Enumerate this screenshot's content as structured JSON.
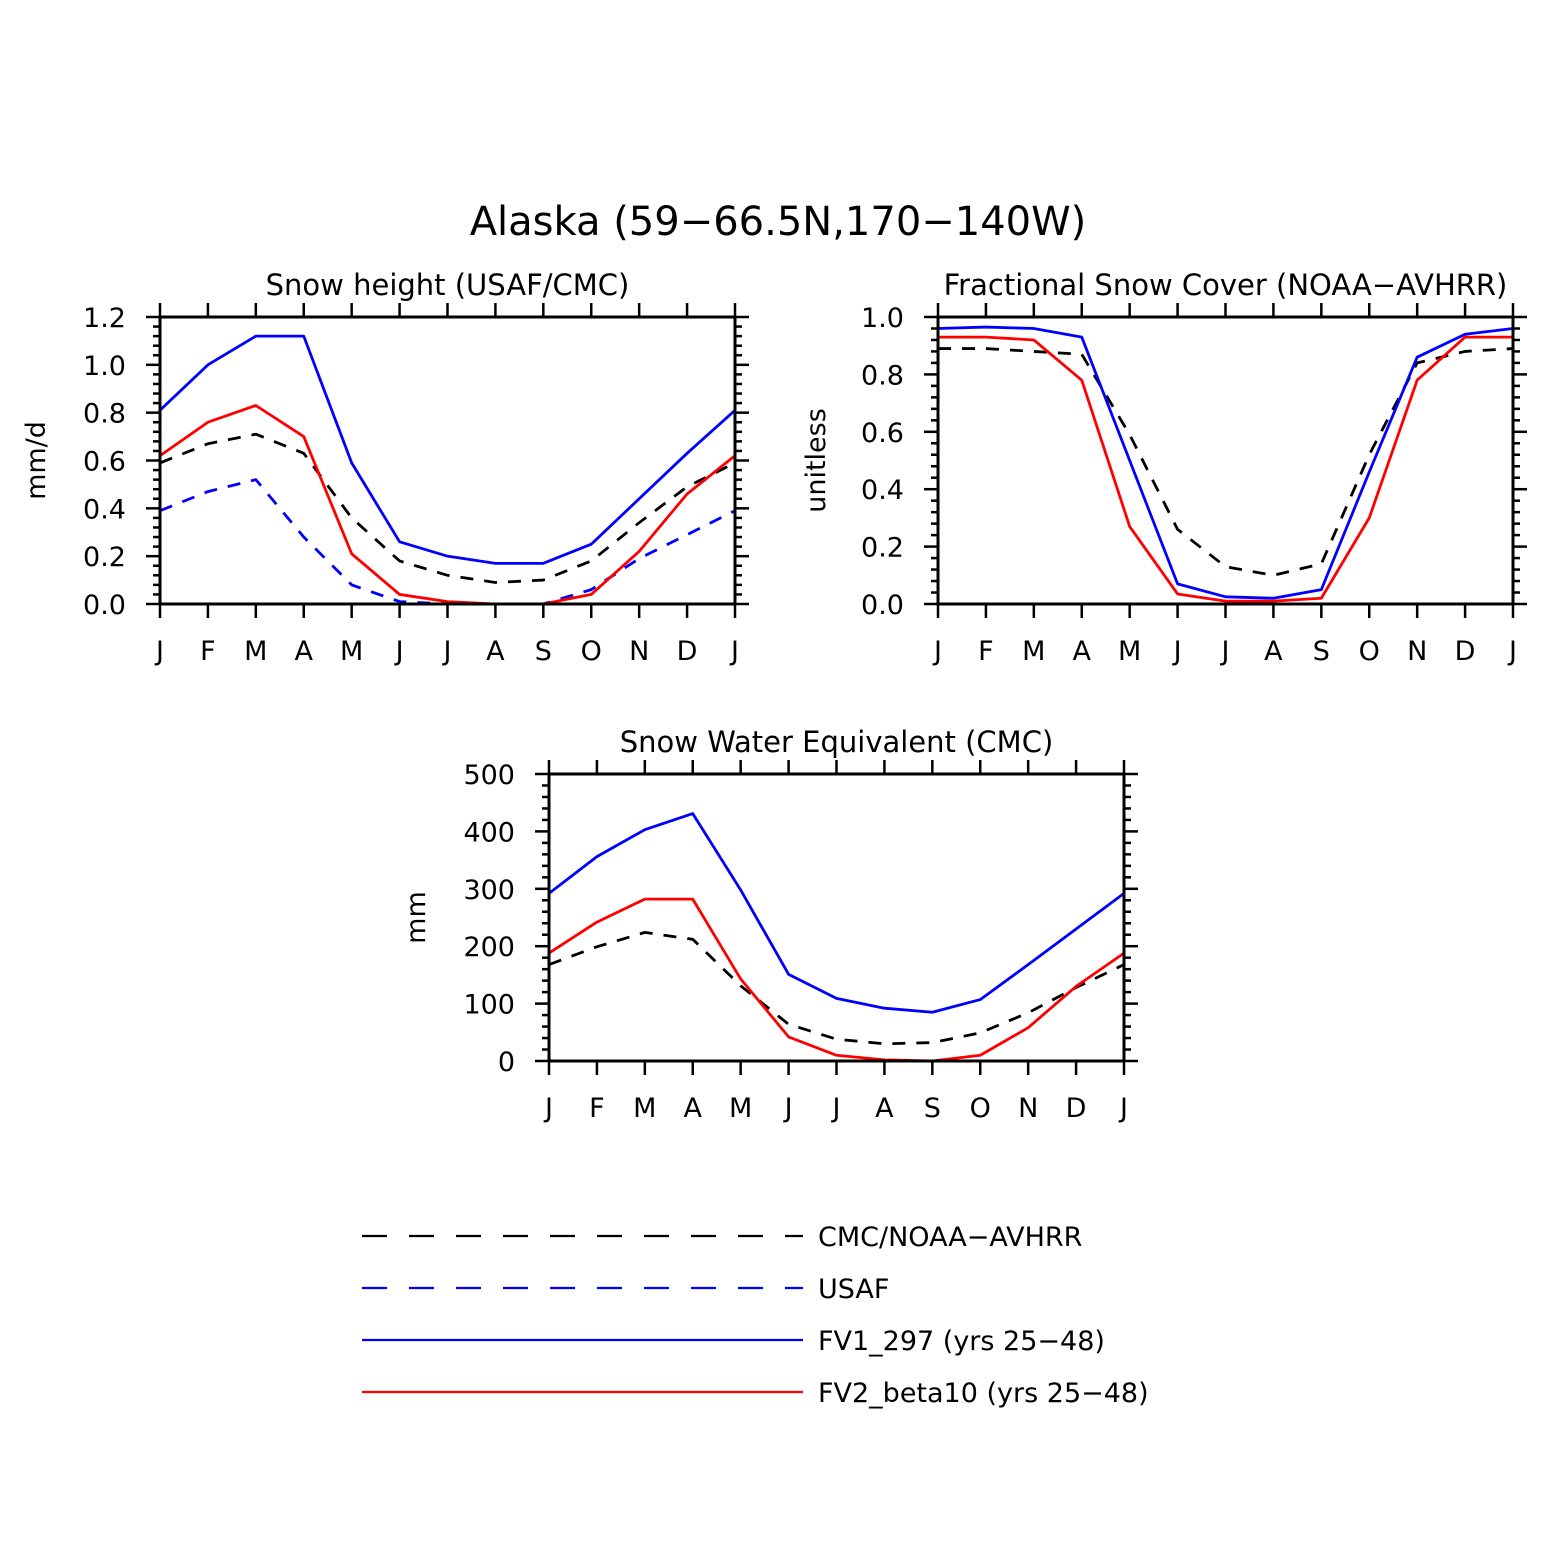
{
  "figure": {
    "title": "Alaska (59−66.5N,170−140W)"
  },
  "colors": {
    "black": "#000000",
    "blue": "#0000ff",
    "red": "#ff0000"
  },
  "legend": [
    {
      "label": "CMC/NOAA−AVHRR",
      "color": "#000000",
      "dash": true
    },
    {
      "label": "USAF",
      "color": "#0000ff",
      "dash": true
    },
    {
      "label": "FV1_297 (yrs 25−48)",
      "color": "#0000ff",
      "dash": false
    },
    {
      "label": "FV2_beta10 (yrs 25−48)",
      "color": "#ff0000",
      "dash": false
    }
  ],
  "chart_data": [
    {
      "type": "line",
      "title": "Snow height (USAF/CMC)",
      "ylabel": "mm/d",
      "categories": [
        "J",
        "F",
        "M",
        "A",
        "M",
        "J",
        "J",
        "A",
        "S",
        "O",
        "N",
        "D",
        "J"
      ],
      "ylim": [
        0,
        1.2
      ],
      "yticks": [
        "0.0",
        "0.2",
        "0.4",
        "0.6",
        "0.8",
        "1.0",
        "1.2"
      ],
      "series": [
        {
          "name": "CMC/NOAA−AVHRR",
          "color": "#000000",
          "dash": true,
          "values": [
            0.59,
            0.67,
            0.71,
            0.63,
            0.36,
            0.18,
            0.12,
            0.09,
            0.1,
            0.18,
            0.34,
            0.49,
            0.59
          ]
        },
        {
          "name": "USAF",
          "color": "#0000ff",
          "dash": true,
          "values": [
            0.39,
            0.47,
            0.52,
            0.28,
            0.08,
            0.01,
            0.0,
            0.0,
            0.0,
            0.06,
            0.19,
            0.29,
            0.39
          ]
        },
        {
          "name": "FV1_297 (yrs 25−48)",
          "color": "#0000ff",
          "dash": false,
          "values": [
            0.81,
            1.0,
            1.12,
            1.12,
            0.59,
            0.26,
            0.2,
            0.17,
            0.17,
            0.25,
            0.44,
            0.63,
            0.81
          ]
        },
        {
          "name": "FV2_beta10 (yrs 25−48)",
          "color": "#ff0000",
          "dash": false,
          "values": [
            0.62,
            0.76,
            0.83,
            0.7,
            0.21,
            0.04,
            0.01,
            0.0,
            0.0,
            0.04,
            0.22,
            0.46,
            0.62
          ]
        }
      ]
    },
    {
      "type": "line",
      "title": "Fractional Snow Cover (NOAA−AVHRR)",
      "ylabel": "unitless",
      "categories": [
        "J",
        "F",
        "M",
        "A",
        "M",
        "J",
        "J",
        "A",
        "S",
        "O",
        "N",
        "D",
        "J"
      ],
      "ylim": [
        0,
        1.0
      ],
      "yticks": [
        "0.0",
        "0.2",
        "0.4",
        "0.6",
        "0.8",
        "1.0"
      ],
      "series": [
        {
          "name": "CMC/NOAA−AVHRR",
          "color": "#000000",
          "dash": true,
          "values": [
            0.89,
            0.89,
            0.88,
            0.87,
            0.59,
            0.26,
            0.13,
            0.1,
            0.14,
            0.52,
            0.84,
            0.88,
            0.89
          ]
        },
        {
          "name": "FV1_297 (yrs 25−48)",
          "color": "#0000ff",
          "dash": false,
          "values": [
            0.96,
            0.965,
            0.96,
            0.93,
            0.5,
            0.07,
            0.025,
            0.02,
            0.05,
            0.46,
            0.86,
            0.94,
            0.96
          ]
        },
        {
          "name": "FV2_beta10 (yrs 25−48)",
          "color": "#ff0000",
          "dash": false,
          "values": [
            0.93,
            0.93,
            0.92,
            0.78,
            0.27,
            0.035,
            0.01,
            0.01,
            0.02,
            0.3,
            0.78,
            0.93,
            0.93
          ]
        }
      ]
    },
    {
      "type": "line",
      "title": "Snow Water Equivalent (CMC)",
      "ylabel": "mm",
      "categories": [
        "J",
        "F",
        "M",
        "A",
        "M",
        "J",
        "J",
        "A",
        "S",
        "O",
        "N",
        "D",
        "J"
      ],
      "ylim": [
        0,
        500
      ],
      "yticks": [
        "0",
        "100",
        "200",
        "300",
        "400",
        "500"
      ],
      "series": [
        {
          "name": "CMC/NOAA−AVHRR",
          "color": "#000000",
          "dash": true,
          "values": [
            168,
            199,
            224,
            212,
            131,
            64,
            38,
            30,
            32,
            49,
            84,
            128,
            168
          ]
        },
        {
          "name": "FV1_297 (yrs 25−48)",
          "color": "#0000ff",
          "dash": false,
          "values": [
            292,
            356,
            403,
            431,
            298,
            151,
            109,
            92,
            85,
            107,
            168,
            230,
            292
          ]
        },
        {
          "name": "FV2_beta10 (yrs 25−48)",
          "color": "#ff0000",
          "dash": false,
          "values": [
            188,
            242,
            282,
            282,
            143,
            42,
            10,
            2,
            0,
            10,
            58,
            130,
            188
          ]
        }
      ]
    }
  ]
}
